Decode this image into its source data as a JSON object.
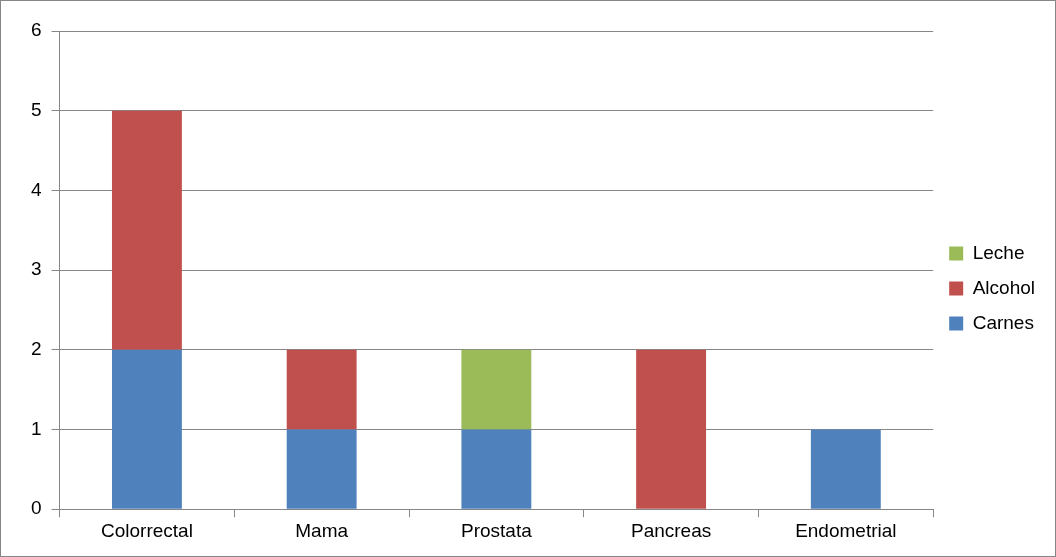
{
  "chart_data": {
    "type": "bar",
    "stacked": true,
    "categories": [
      "Colorrectal",
      "Mama",
      "Prostata",
      "Pancreas",
      "Endometrial"
    ],
    "series": [
      {
        "name": "Carnes",
        "color": "#4f81bd",
        "values": [
          2,
          1,
          1,
          0,
          1
        ]
      },
      {
        "name": "Alcohol",
        "color": "#c0504d",
        "values": [
          3,
          1,
          0,
          2,
          0
        ]
      },
      {
        "name": "Leche",
        "color": "#9bbb59",
        "values": [
          0,
          0,
          1,
          0,
          0
        ]
      }
    ],
    "ylim": [
      0,
      6
    ],
    "yticks": [
      0,
      1,
      2,
      3,
      4,
      5,
      6
    ],
    "grid": "y",
    "legend": "right"
  }
}
